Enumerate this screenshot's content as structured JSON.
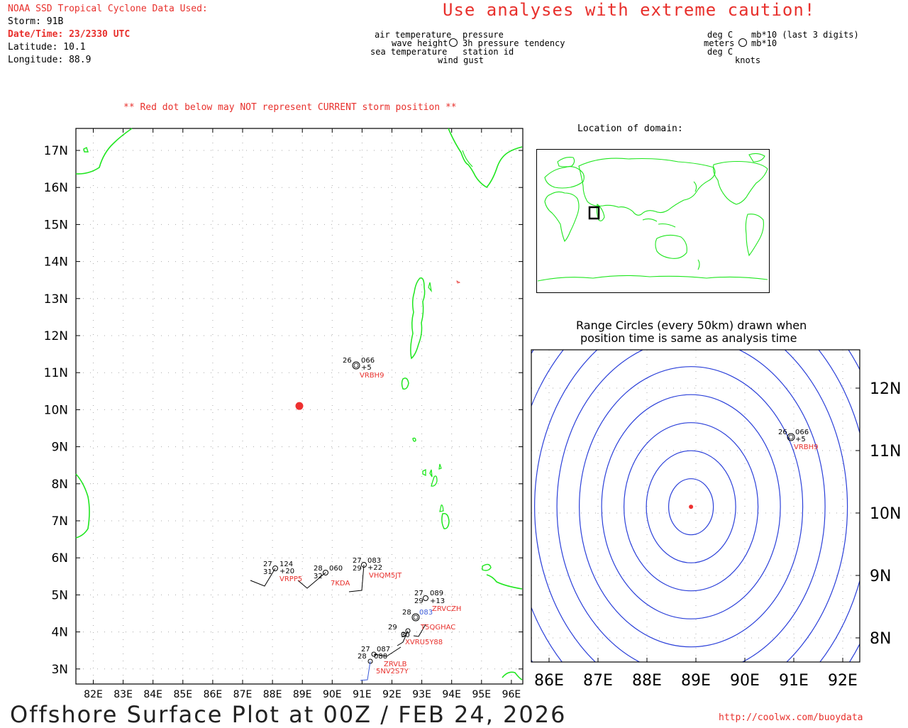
{
  "header": {
    "source_title": "NOAA SSD Tropical Cyclone Data Used:",
    "storm": "Storm: 91B",
    "datetime": "Date/Time: 23/2330 UTC",
    "latitude": "Latitude: 10.1",
    "longitude": "Longitude: 88.9",
    "caution": "Use analyses with extreme caution!",
    "red_dot_note": "** Red dot below may NOT represent CURRENT storm position **"
  },
  "legend_left": {
    "air_temperature": "air temperature",
    "wave_height": "wave height",
    "sea_temperature": "sea temperature",
    "wind_gust": "wind gust",
    "pressure": "pressure",
    "pressure_tendency": "3h pressure tendency",
    "station_id": "station id"
  },
  "legend_right": {
    "deg_c_top": "deg C",
    "meters": "meters",
    "deg_c_bottom": "deg C",
    "knots": "knots",
    "mb_last3": "mb*10 (last 3 digits)",
    "mb": "mb*10"
  },
  "main_map": {
    "lat_labels": [
      "17N",
      "16N",
      "15N",
      "14N",
      "13N",
      "12N",
      "11N",
      "10N",
      "9N",
      "8N",
      "7N",
      "6N",
      "5N",
      "4N",
      "3N"
    ],
    "lon_labels": [
      "82E",
      "83E",
      "84E",
      "85E",
      "86E",
      "87E",
      "88E",
      "89E",
      "90E",
      "91E",
      "92E",
      "93E",
      "94E",
      "95E",
      "96E"
    ],
    "storm_position": {
      "lat": 10.1,
      "lon": 88.9
    },
    "stations": [
      {
        "id": "VRBH9",
        "air": "26",
        "pres": "066",
        "tend": "+5"
      },
      {
        "id": "VRPP5",
        "air": "27",
        "pres": "124",
        "tend": "+20",
        "sea": "31"
      },
      {
        "id": "7KDA",
        "air": "28",
        "pres": "060",
        "sea": "32"
      },
      {
        "id": "VHQM5JT",
        "air": "27",
        "pres": "083",
        "tend": "+22",
        "sea": "29"
      },
      {
        "id": "ZRVCZH",
        "air": "27",
        "pres": "089",
        "tend": "+13",
        "sea": "29"
      },
      {
        "id": "T5QGHAC",
        "air": "28",
        "pres": "083"
      },
      {
        "id": "XVRU5Y88",
        "air": "29",
        "pres": "30"
      },
      {
        "id": "ZRVLB",
        "air": "27",
        "pres": "087"
      },
      {
        "id": "5NV2S7Y",
        "air": "28",
        "pres": "088"
      }
    ],
    "footer_title": "Offshore Surface Plot at 00Z / FEB 24, 2026",
    "url": "http://coolwx.com/buoydata"
  },
  "inset": {
    "title": "Location of domain:"
  },
  "range_panel": {
    "title_line1": "Range Circles (every 50km) drawn when",
    "title_line2": "position time is same as analysis time",
    "lat_labels": [
      "12N",
      "11N",
      "10N",
      "9N",
      "8N"
    ],
    "lon_labels": [
      "86E",
      "87E",
      "88E",
      "89E",
      "90E",
      "91E",
      "92E"
    ],
    "station": {
      "id": "VRBH9",
      "air": "26",
      "pres": "066",
      "tend": "+5"
    }
  },
  "colors": {
    "land": "#1ee61e",
    "storm": "#ee3030",
    "circles": "#2a3fd9",
    "label_red": "#e8302c"
  }
}
